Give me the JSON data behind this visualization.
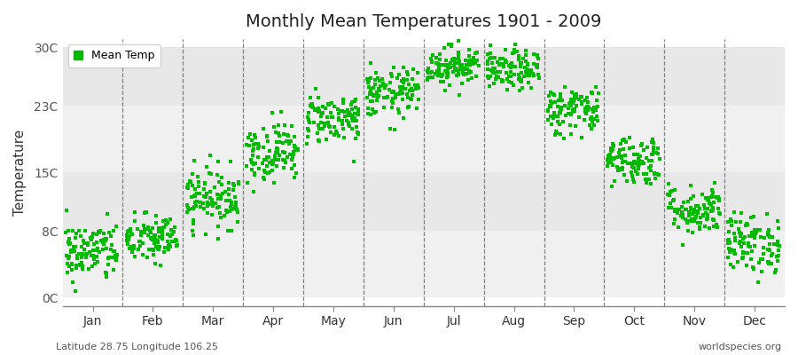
{
  "title": "Monthly Mean Temperatures 1901 - 2009",
  "ylabel": "Temperature",
  "xlabel_labels": [
    "Jan",
    "Feb",
    "Mar",
    "Apr",
    "May",
    "Jun",
    "Jul",
    "Aug",
    "Sep",
    "Oct",
    "Nov",
    "Dec"
  ],
  "ytick_labels": [
    "0C",
    "8C",
    "15C",
    "23C",
    "30C"
  ],
  "ytick_values": [
    0,
    8,
    15,
    23,
    30
  ],
  "ylim": [
    -1,
    31
  ],
  "legend_label": "Mean Temp",
  "dot_color": "#00bb00",
  "bg_color": "#ffffff",
  "plot_bg_color": "#ffffff",
  "band_colors": [
    "#f0f0f0",
    "#e8e8e8"
  ],
  "footer_left": "Latitude 28.75 Longitude 106.25",
  "footer_right": "worldspecies.org",
  "monthly_means": [
    5.5,
    7.0,
    12.0,
    17.5,
    21.5,
    24.5,
    27.8,
    27.2,
    22.5,
    16.5,
    10.5,
    6.5
  ],
  "monthly_stds": [
    1.8,
    1.5,
    1.8,
    1.8,
    1.5,
    1.5,
    1.2,
    1.2,
    1.5,
    1.5,
    1.5,
    1.8
  ],
  "n_years": 109,
  "seed": 42,
  "xlim": [
    0,
    12
  ],
  "month_boundaries": [
    1,
    2,
    3,
    4,
    5,
    6,
    7,
    8,
    9,
    10,
    11
  ]
}
